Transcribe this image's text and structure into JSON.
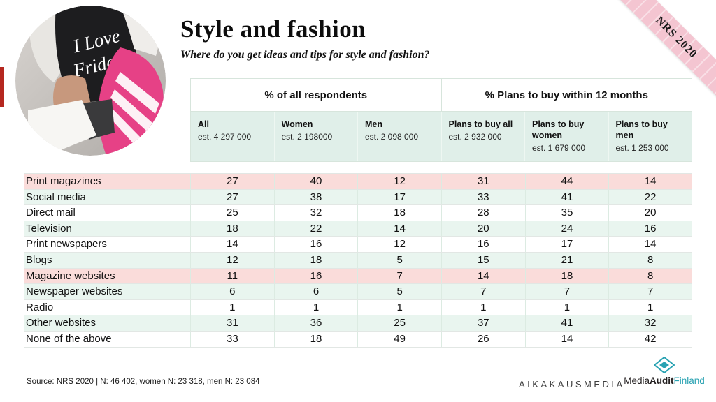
{
  "title": "Style and fashion",
  "subtitle": "Where do you get ideas and tips for style and fashion?",
  "ribbon_label": "NRS 2020",
  "table": {
    "group_headers": [
      "% of all respondents",
      "% Plans to buy within 12 months"
    ],
    "columns": [
      {
        "label": "All",
        "est": "est. 4 297 000"
      },
      {
        "label": "Women",
        "est": "est. 2 198000"
      },
      {
        "label": "Men",
        "est": "est. 2 098 000"
      },
      {
        "label": "Plans to buy all",
        "est": "est. 2 932 000"
      },
      {
        "label": "Plans to buy women",
        "est": "est. 1 679 000"
      },
      {
        "label": "Plans to buy men",
        "est": "est. 1 253 000"
      }
    ],
    "rows": [
      {
        "label": "Print magazines",
        "values": [
          27,
          40,
          12,
          31,
          44,
          14
        ],
        "bg": "pink"
      },
      {
        "label": "Social media",
        "values": [
          27,
          38,
          17,
          33,
          41,
          22
        ],
        "bg": "mint"
      },
      {
        "label": "Direct mail",
        "values": [
          25,
          32,
          18,
          28,
          35,
          20
        ],
        "bg": "white"
      },
      {
        "label": "Television",
        "values": [
          18,
          22,
          14,
          20,
          24,
          16
        ],
        "bg": "mint"
      },
      {
        "label": "Print newspapers",
        "values": [
          14,
          16,
          12,
          16,
          17,
          14
        ],
        "bg": "white"
      },
      {
        "label": "Blogs",
        "values": [
          12,
          18,
          5,
          15,
          21,
          8
        ],
        "bg": "mint"
      },
      {
        "label": "Magazine websites",
        "values": [
          11,
          16,
          7,
          14,
          18,
          8
        ],
        "bg": "pink"
      },
      {
        "label": "Newspaper websites",
        "values": [
          6,
          6,
          5,
          7,
          7,
          7
        ],
        "bg": "mint"
      },
      {
        "label": "Radio",
        "values": [
          1,
          1,
          1,
          1,
          1,
          1
        ],
        "bg": "white"
      },
      {
        "label": "Other websites",
        "values": [
          31,
          36,
          25,
          37,
          41,
          32
        ],
        "bg": "mint"
      },
      {
        "label": "None of the above",
        "values": [
          33,
          18,
          49,
          26,
          14,
          42
        ],
        "bg": "white"
      }
    ]
  },
  "footer": {
    "source": "Source: NRS 2020 | N: 46 402, women N: 23 318, men N: 23 084"
  },
  "logos": {
    "aikakausmedia": "AIKAKAUSMEDIA",
    "media": "Media",
    "audit": "Audit",
    "finland": "Finland"
  },
  "colors": {
    "highlight_row_pink": "#fadcda",
    "row_mint": "#e9f5ef",
    "header_mint": "#e0efe9",
    "ribbon_pink": "#f4c5d1",
    "logo_teal": "#28a2b2",
    "accent_red": "#b5271f",
    "bag_pink": "#e64186"
  },
  "chart_data": {
    "type": "table",
    "title": "Style and fashion",
    "subtitle": "Where do you get ideas and tips for style and fashion?",
    "column_groups": [
      {
        "label": "% of all respondents",
        "span": 3
      },
      {
        "label": "% Plans to buy within 12 months",
        "span": 3
      }
    ],
    "columns": [
      "All est. 4 297 000",
      "Women est. 2 198000",
      "Men est. 2 098 000",
      "Plans to buy all est. 2 932 000",
      "Plans to buy women est. 1 679 000",
      "Plans to buy men est. 1 253 000"
    ],
    "rows": [
      {
        "label": "Print magazines",
        "values": [
          27,
          40,
          12,
          31,
          44,
          14
        ]
      },
      {
        "label": "Social media",
        "values": [
          27,
          38,
          17,
          33,
          41,
          22
        ]
      },
      {
        "label": "Direct mail",
        "values": [
          25,
          32,
          18,
          28,
          35,
          20
        ]
      },
      {
        "label": "Television",
        "values": [
          18,
          22,
          14,
          20,
          24,
          16
        ]
      },
      {
        "label": "Print newspapers",
        "values": [
          14,
          16,
          12,
          16,
          17,
          14
        ]
      },
      {
        "label": "Blogs",
        "values": [
          12,
          18,
          5,
          15,
          21,
          8
        ]
      },
      {
        "label": "Magazine websites",
        "values": [
          11,
          16,
          7,
          14,
          18,
          8
        ]
      },
      {
        "label": "Newspaper websites",
        "values": [
          6,
          6,
          5,
          7,
          7,
          7
        ]
      },
      {
        "label": "Radio",
        "values": [
          1,
          1,
          1,
          1,
          1,
          1
        ]
      },
      {
        "label": "Other websites",
        "values": [
          31,
          36,
          25,
          37,
          41,
          32
        ]
      },
      {
        "label": "None of the above",
        "values": [
          33,
          18,
          49,
          26,
          14,
          42
        ]
      }
    ],
    "highlighted_rows": [
      "Print magazines",
      "Magazine websites"
    ],
    "source": "Source: NRS 2020 | N: 46 402, women N: 23 318, men N: 23 084"
  }
}
